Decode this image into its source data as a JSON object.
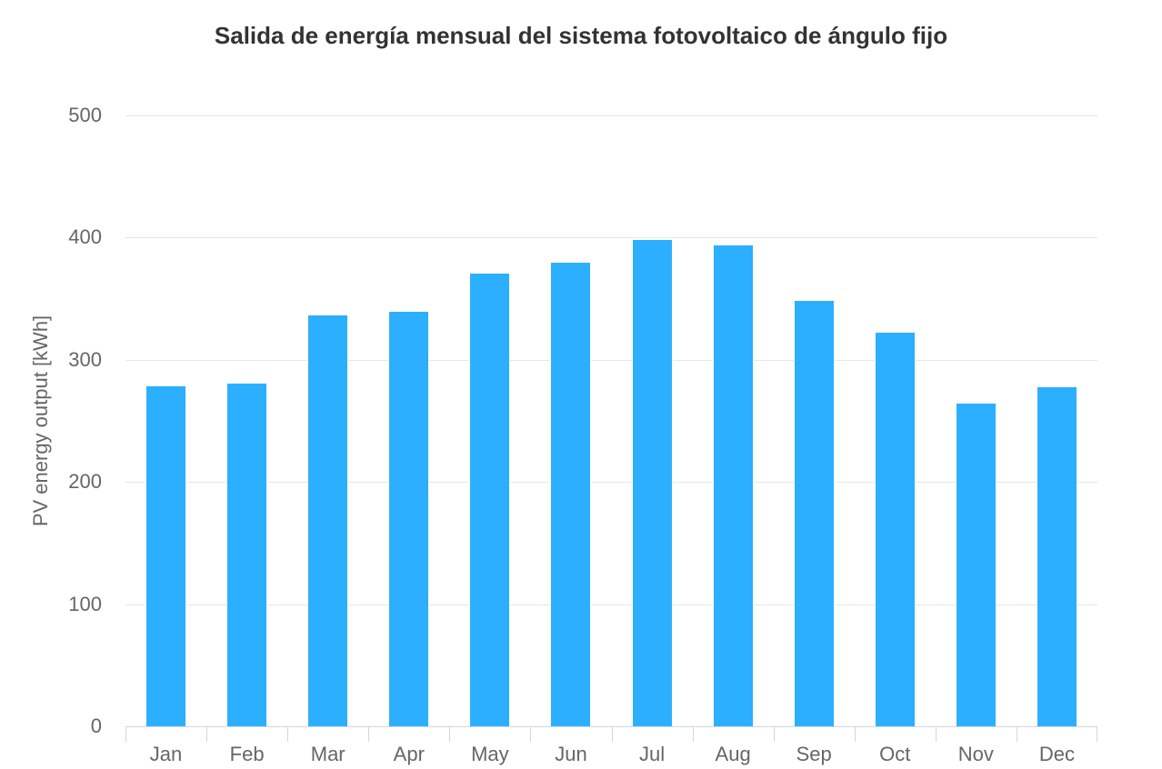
{
  "chart_data": {
    "type": "bar",
    "title": "Salida de energía mensual del sistema fotovoltaico de ángulo fijo",
    "xlabel": "",
    "ylabel": "PV energy output [kWh]",
    "categories": [
      "Jan",
      "Feb",
      "Mar",
      "Apr",
      "May",
      "Jun",
      "Jul",
      "Aug",
      "Sep",
      "Oct",
      "Nov",
      "Dec"
    ],
    "values": [
      279,
      281,
      337,
      340,
      371,
      380,
      399,
      394,
      349,
      323,
      265,
      278
    ],
    "ylim": [
      0,
      500
    ],
    "yticks": [
      0,
      100,
      200,
      300,
      400,
      500
    ],
    "grid": true,
    "legend": "none",
    "colors": {
      "bar": "#2CAFFE",
      "bar_border": "#ffffff",
      "grid_line": "#e6e6e6",
      "axis_line": "#ccd6eb",
      "tick_label": "#666666",
      "title": "#333333",
      "background": "#ffffff"
    }
  }
}
